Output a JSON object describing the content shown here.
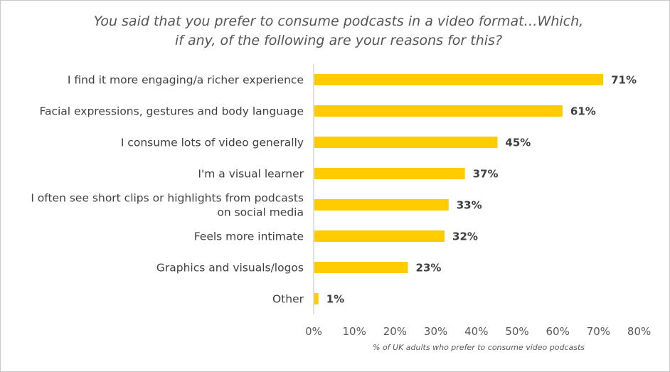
{
  "chart_data": {
    "type": "bar",
    "orientation": "horizontal",
    "title_lines": [
      "You said that you prefer to consume podcasts in a video format…Which,",
      "if any, of the following are your reasons for this?"
    ],
    "categories": [
      [
        "I find it more engaging/a richer experience"
      ],
      [
        "Facial expressions, gestures and body language"
      ],
      [
        "I consume lots of video generally"
      ],
      [
        "I'm a visual learner"
      ],
      [
        "I often see short clips or highlights from podcasts",
        "on social media"
      ],
      [
        "Feels more intimate"
      ],
      [
        "Graphics and visuals/logos"
      ],
      [
        "Other"
      ]
    ],
    "values": [
      71,
      61,
      45,
      37,
      33,
      32,
      23,
      1
    ],
    "value_labels": [
      "71%",
      "61%",
      "45%",
      "37%",
      "33%",
      "32%",
      "23%",
      "1%"
    ],
    "xlim": [
      0,
      80
    ],
    "xticks": [
      0,
      10,
      20,
      30,
      40,
      50,
      60,
      70,
      80
    ],
    "xtick_labels": [
      "0%",
      "10%",
      "20%",
      "30%",
      "40%",
      "50%",
      "60%",
      "70%",
      "80%"
    ],
    "xlabel": "% of UK adults who prefer to consume video podcasts",
    "bar_color": "#FFCC00",
    "grid": false,
    "legend": "none"
  }
}
